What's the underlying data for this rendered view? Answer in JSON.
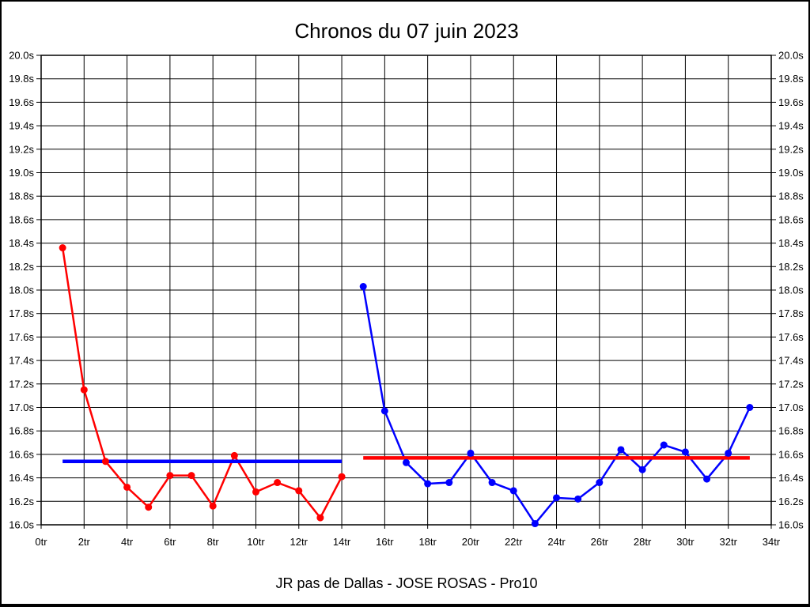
{
  "chart_data": {
    "type": "line",
    "title": "Chronos du 07 juin 2023",
    "caption": "JR pas de Dallas - JOSE ROSAS - Pro10",
    "x_unit": "tr",
    "y_unit": "s",
    "xlim": [
      0,
      34
    ],
    "x_tick_step": 2,
    "ylim": [
      16.0,
      20.0
    ],
    "y_tick_step": 0.2,
    "grid": true,
    "legend": "none",
    "axis_color": "#000000",
    "series": [
      {
        "name": "serie-rouge-premiere-session",
        "color": "#ff0000",
        "start_x": 1,
        "x_step": 1,
        "values": [
          18.36,
          17.15,
          16.54,
          16.32,
          16.15,
          16.42,
          16.42,
          16.16,
          16.59,
          16.28,
          16.36,
          16.29,
          16.06,
          16.41
        ]
      },
      {
        "name": "serie-bleue-seconde-session",
        "color": "#0000ff",
        "start_x": 15,
        "x_step": 1,
        "values": [
          18.03,
          16.97,
          16.53,
          16.35,
          16.36,
          16.61,
          16.36,
          16.29,
          16.01,
          16.23,
          16.22,
          16.36,
          16.64,
          16.47,
          16.68,
          16.62,
          16.39,
          16.61,
          17.0
        ]
      }
    ],
    "average_lines": [
      {
        "name": "moyenne-premiere-session",
        "color": "#0000ff",
        "value": 16.54,
        "x_start": 1,
        "x_end": 14
      },
      {
        "name": "moyenne-seconde-session",
        "color": "#ff0000",
        "value": 16.57,
        "x_start": 15,
        "x_end": 33
      }
    ]
  }
}
